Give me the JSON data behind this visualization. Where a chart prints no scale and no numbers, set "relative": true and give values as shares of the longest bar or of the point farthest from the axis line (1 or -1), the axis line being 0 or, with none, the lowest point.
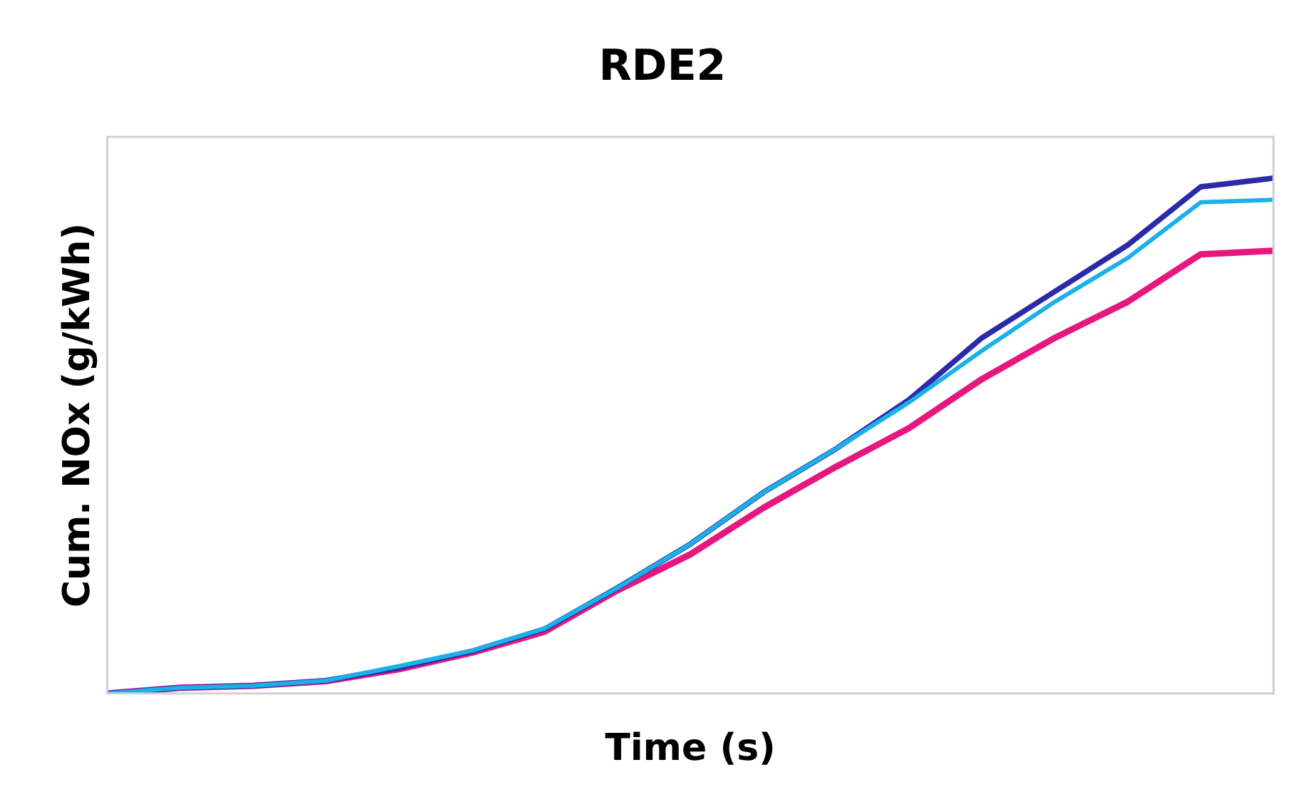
{
  "chart_data": {
    "type": "line",
    "title": "RDE2",
    "xlabel": "Time (s)",
    "ylabel": "Cum. NOx (g/kWh)",
    "relative": true,
    "grid": false,
    "legend": false,
    "marker": "none",
    "line_style": "solid",
    "categories": [
      null,
      null,
      null,
      null,
      null,
      null,
      null,
      null,
      null,
      null,
      null,
      null,
      null,
      null,
      null,
      null,
      null
    ],
    "series": [
      {
        "color": "#e6187f",
        "values": [
          0,
          0.011,
          0.015,
          0.024,
          0.047,
          0.079,
          0.12,
          0.2,
          0.27,
          0.36,
          0.44,
          0.515,
          0.61,
          0.69,
          0.76,
          0.852,
          0.859
        ]
      },
      {
        "color": "#2b2aa8",
        "values": [
          0,
          0.011,
          0.015,
          0.025,
          0.05,
          0.082,
          0.125,
          0.205,
          0.29,
          0.39,
          0.475,
          0.57,
          0.69,
          0.78,
          0.87,
          0.983,
          1
        ]
      },
      {
        "color": "#1ab0e8",
        "values": [
          0,
          0.011,
          0.015,
          0.025,
          0.053,
          0.083,
          0.126,
          0.205,
          0.29,
          0.39,
          0.475,
          0.565,
          0.665,
          0.76,
          0.845,
          0.953,
          0.958
        ]
      }
    ]
  }
}
